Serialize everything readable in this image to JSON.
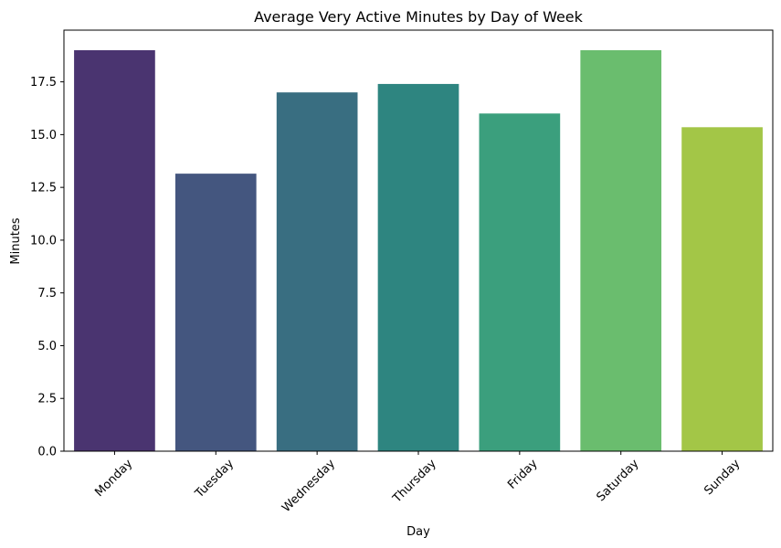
{
  "chart_data": {
    "type": "bar",
    "title": "Average Very Active Minutes by Day of Week",
    "xlabel": "Day",
    "ylabel": "Minutes",
    "categories": [
      "Monday",
      "Tuesday",
      "Wednesday",
      "Thursday",
      "Friday",
      "Saturday",
      "Sunday"
    ],
    "values": [
      19.0,
      13.15,
      17.0,
      17.4,
      16.0,
      19.0,
      15.35
    ],
    "colors": [
      "#4a3470",
      "#44567f",
      "#396e81",
      "#2e8580",
      "#3b9f7d",
      "#6abd6e",
      "#a3c647"
    ],
    "ylim": [
      0,
      19.95
    ],
    "yticks": [
      0.0,
      2.5,
      5.0,
      7.5,
      10.0,
      12.5,
      15.0,
      17.5
    ],
    "ytick_labels": [
      "0.0",
      "2.5",
      "5.0",
      "7.5",
      "10.0",
      "12.5",
      "15.0",
      "17.5"
    ],
    "grid": false,
    "legend": "none"
  }
}
